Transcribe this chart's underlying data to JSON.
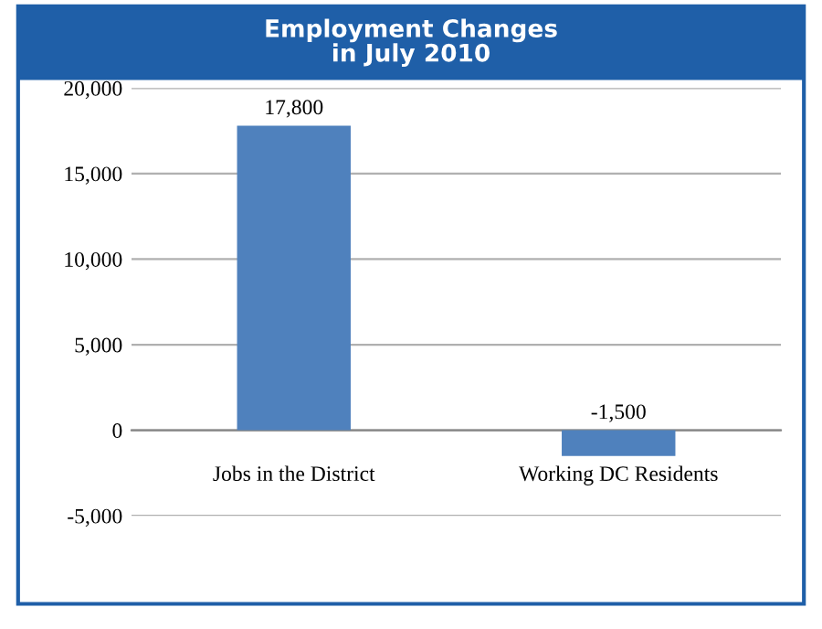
{
  "chart_data": {
    "type": "bar",
    "title": "Employment Changes\nin July 2010",
    "categories": [
      "Jobs in the District",
      "Working DC Residents"
    ],
    "values": [
      17800,
      -1500
    ],
    "color": "#4f81bd",
    "value_labels": [
      "17,800",
      "-1,500"
    ],
    "ylim": [
      -5000,
      20000
    ],
    "yticks": [
      {
        "value": -5000,
        "label": "-5,000"
      },
      0,
      {
        "value": 5000,
        "label": "5,000"
      },
      {
        "value": 10000,
        "label": "10,000"
      },
      {
        "value": 15000,
        "label": "15,000"
      },
      {
        "value": 20000,
        "label": "20,000"
      }
    ],
    "grid": "y"
  }
}
